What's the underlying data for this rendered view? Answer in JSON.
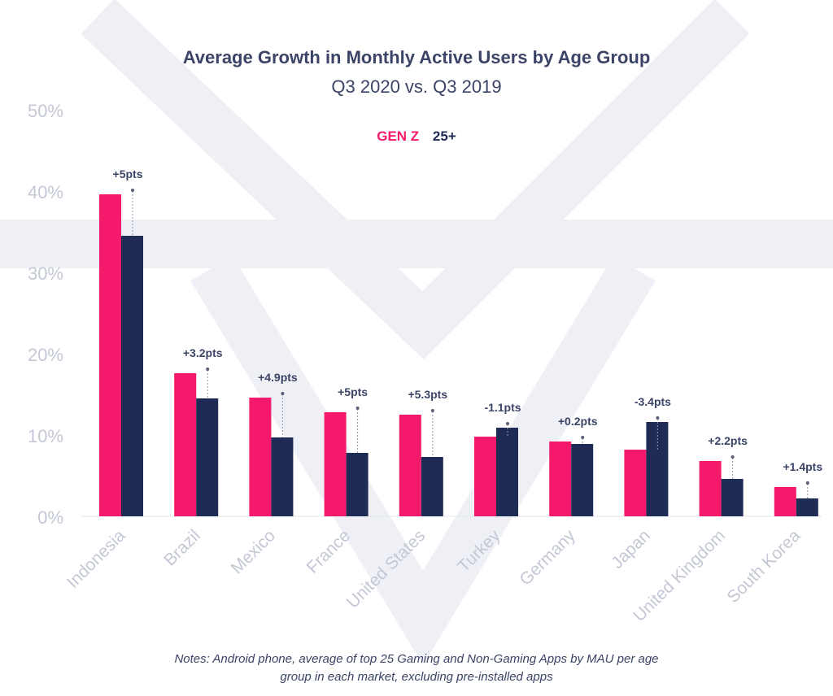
{
  "chart_data": {
    "type": "bar",
    "title": "Average Growth in Monthly Active Users by Age Group",
    "subtitle": "Q3 2020 vs. Q3 2019",
    "categories": [
      "Indonesia",
      "Brazil",
      "Mexico",
      "France",
      "United States",
      "Turkey",
      "Germany",
      "Japan",
      "United Kingdom",
      "South Korea"
    ],
    "series": [
      {
        "name": "GEN Z",
        "color": "#f5196b",
        "values": [
          39.6,
          17.6,
          14.6,
          12.8,
          12.5,
          9.8,
          9.2,
          8.2,
          6.8,
          3.6
        ]
      },
      {
        "name": "25+",
        "color": "#1d2b55",
        "values": [
          34.5,
          14.5,
          9.7,
          7.8,
          7.3,
          10.9,
          8.9,
          11.6,
          4.6,
          2.2
        ]
      }
    ],
    "annotations": [
      "+5pts",
      "+3.2pts",
      "+4.9pts",
      "+5pts",
      "+5.3pts",
      "-1.1pts",
      "+0.2pts",
      "-3.4pts",
      "+2.2pts",
      "+1.4pts"
    ],
    "yticks": [
      "0%",
      "10%",
      "20%",
      "30%",
      "40%",
      "50%"
    ],
    "ylim": [
      0,
      50
    ],
    "xlabel": "",
    "ylabel": "",
    "legend_position": "top-center"
  },
  "notes": {
    "line1": "Notes: Android phone, average of top 25 Gaming and Non-Gaming Apps by MAU per age",
    "line2": "group in each market, excluding pre-installed apps"
  }
}
